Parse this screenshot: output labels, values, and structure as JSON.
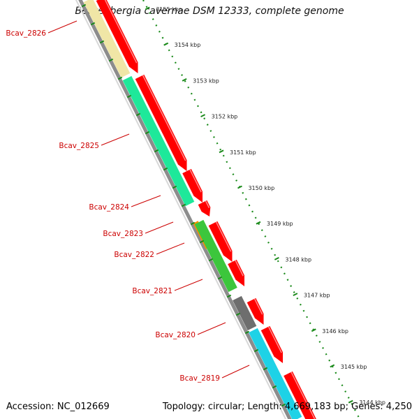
{
  "title": "Beutenbergia cavernae DSM 12333, complete genome",
  "footer": {
    "accession": "Accession: NC_012669",
    "summary": "Topology: circular; Length: 4,669,183 bp; Genes: 4,250"
  },
  "ruler": {
    "ticks": [
      "3155 kbp",
      "3154 kbp",
      "3153 kbp",
      "3152 kbp",
      "3151 kbp",
      "3150 kbp",
      "3149 kbp",
      "3148 kbp",
      "3147 kbp",
      "3146 kbp",
      "3145 kbp",
      "3144 kbp"
    ]
  },
  "genes": [
    {
      "label": "Bcav_2826",
      "cds_color": "#f0e6a6"
    },
    {
      "label": "Bcav_2825",
      "cds_color": "#1ee89a"
    },
    {
      "label": "Bcav_2824",
      "cds_color": "#ff0000"
    },
    {
      "label": "Bcav_2823",
      "cds_color": "#ff0000"
    },
    {
      "label": "Bcav_2822",
      "cds_color": "#ff8c00"
    },
    {
      "label": "Bcav_2821",
      "cds_color": "#3cc63c"
    },
    {
      "label": "Bcav_2820",
      "cds_color": "#6e6e6e"
    },
    {
      "label": "Bcav_2819",
      "cds_color": "#1ed2e6"
    }
  ],
  "colors": {
    "gene_strand": "#ff0000",
    "backbone": "#8c8c8c",
    "tick_marks": "#1a8a1a",
    "label_text": "#cc0000",
    "ruler_text": "#222222"
  }
}
